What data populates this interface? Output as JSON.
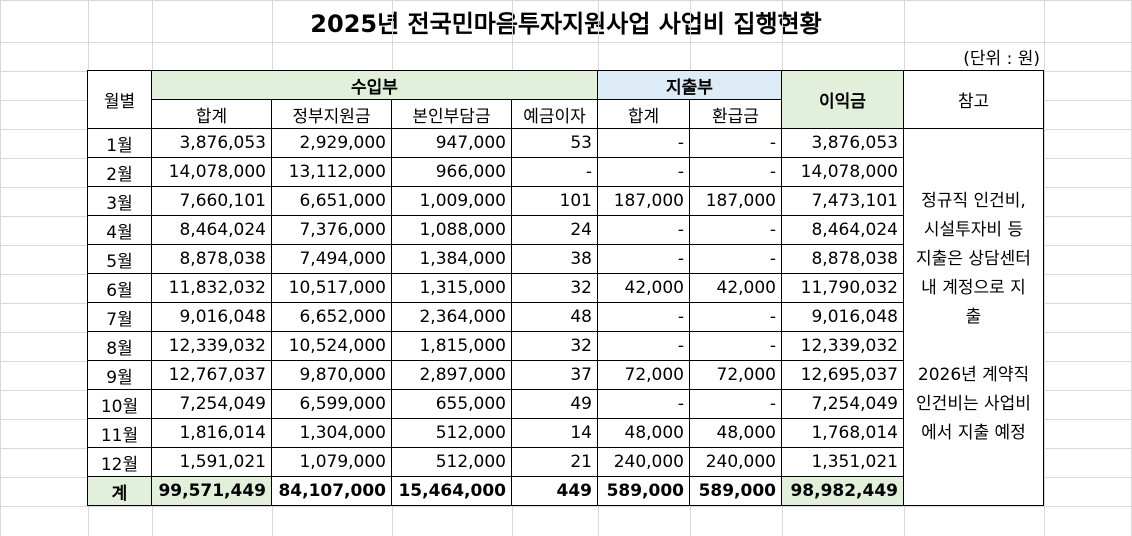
{
  "title": "2025년 전국민마음투자지원사업 사업비 집행현황",
  "unit": "(단위 : 원)",
  "header": {
    "month": "월별",
    "income": {
      "label": "수입부",
      "columns": [
        "합계",
        "정부지원금",
        "본인부담금",
        "예금이자"
      ]
    },
    "expense": {
      "label": "지출부",
      "columns": [
        "합계",
        "환급금"
      ]
    },
    "profit": "이익금",
    "note": "참고"
  },
  "rows": [
    {
      "month": "1월",
      "values": [
        "3,876,053",
        "2,929,000",
        "947,000",
        "53",
        "-",
        "-",
        "3,876,053"
      ]
    },
    {
      "month": "2월",
      "values": [
        "14,078,000",
        "13,112,000",
        "966,000",
        "-",
        "-",
        "-",
        "14,078,000"
      ]
    },
    {
      "month": "3월",
      "values": [
        "7,660,101",
        "6,651,000",
        "1,009,000",
        "101",
        "187,000",
        "187,000",
        "7,473,101"
      ]
    },
    {
      "month": "4월",
      "values": [
        "8,464,024",
        "7,376,000",
        "1,088,000",
        "24",
        "-",
        "-",
        "8,464,024"
      ]
    },
    {
      "month": "5월",
      "values": [
        "8,878,038",
        "7,494,000",
        "1,384,000",
        "38",
        "-",
        "-",
        "8,878,038"
      ]
    },
    {
      "month": "6월",
      "values": [
        "11,832,032",
        "10,517,000",
        "1,315,000",
        "32",
        "42,000",
        "42,000",
        "11,790,032"
      ]
    },
    {
      "month": "7월",
      "values": [
        "9,016,048",
        "6,652,000",
        "2,364,000",
        "48",
        "-",
        "-",
        "9,016,048"
      ]
    },
    {
      "month": "8월",
      "values": [
        "12,339,032",
        "10,524,000",
        "1,815,000",
        "32",
        "-",
        "-",
        "12,339,032"
      ]
    },
    {
      "month": "9월",
      "values": [
        "12,767,037",
        "9,870,000",
        "2,897,000",
        "37",
        "72,000",
        "72,000",
        "12,695,037"
      ]
    },
    {
      "month": "10월",
      "values": [
        "7,254,049",
        "6,599,000",
        "655,000",
        "49",
        "-",
        "-",
        "7,254,049"
      ]
    },
    {
      "month": "11월",
      "values": [
        "1,816,014",
        "1,304,000",
        "512,000",
        "14",
        "48,000",
        "48,000",
        "1,768,014"
      ]
    },
    {
      "month": "12월",
      "values": [
        "1,591,021",
        "1,079,000",
        "512,000",
        "21",
        "240,000",
        "240,000",
        "1,351,021"
      ]
    }
  ],
  "total": {
    "label": "계",
    "values": [
      "99,571,449",
      "84,107,000",
      "15,464,000",
      "449",
      "589,000",
      "589,000",
      "98,982,449"
    ]
  },
  "note": [
    [
      "정규직 인건비,",
      "시설투자비 등",
      "지출은 상담센터",
      "내 계정으로 지",
      "출"
    ],
    [
      "2026년 계약직",
      "인건비는 사업비",
      "에서 지출 예정"
    ]
  ]
}
